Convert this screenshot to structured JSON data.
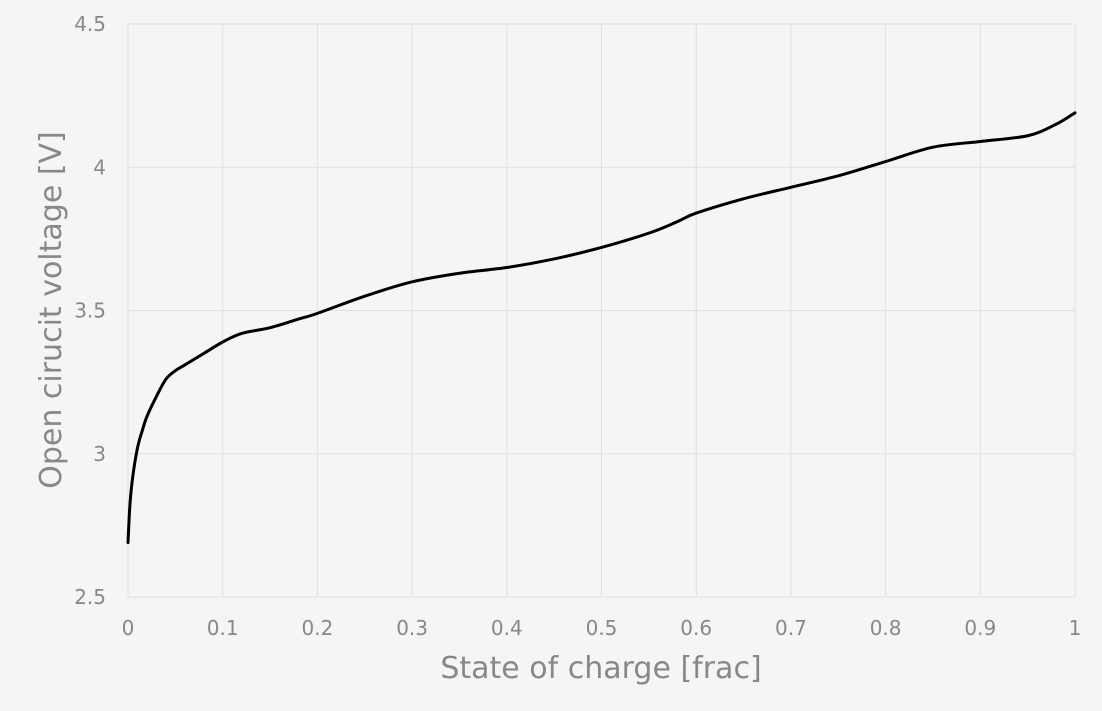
{
  "chart_data": {
    "type": "line",
    "title": "",
    "xlabel": "State of charge [frac]",
    "ylabel": "Open cirucit voltage [V]",
    "xlim": [
      0,
      1
    ],
    "ylim": [
      2.5,
      4.5
    ],
    "x_ticks": [
      "0",
      "0.1",
      "0.2",
      "0.3",
      "0.4",
      "0.5",
      "0.6",
      "0.7",
      "0.8",
      "0.9",
      "1"
    ],
    "y_ticks": [
      "2.5",
      "3",
      "3.5",
      "4",
      "4.5"
    ],
    "grid": true,
    "legend": "none",
    "line_color": "#000000",
    "series": [
      {
        "x": [
          0,
          0.002,
          0.005,
          0.01,
          0.015,
          0.02,
          0.03,
          0.04,
          0.05,
          0.06,
          0.08,
          0.1,
          0.12,
          0.15,
          0.18,
          0.2,
          0.25,
          0.3,
          0.35,
          0.4,
          0.45,
          0.5,
          0.55,
          0.58,
          0.6,
          0.65,
          0.7,
          0.75,
          0.8,
          0.85,
          0.9,
          0.95,
          0.98,
          1.0
        ],
        "y": [
          2.69,
          2.82,
          2.92,
          3.02,
          3.08,
          3.13,
          3.2,
          3.26,
          3.29,
          3.31,
          3.35,
          3.39,
          3.42,
          3.44,
          3.47,
          3.49,
          3.55,
          3.6,
          3.63,
          3.65,
          3.68,
          3.72,
          3.77,
          3.81,
          3.84,
          3.89,
          3.93,
          3.97,
          4.02,
          4.07,
          4.09,
          4.11,
          4.15,
          4.19
        ]
      }
    ]
  }
}
